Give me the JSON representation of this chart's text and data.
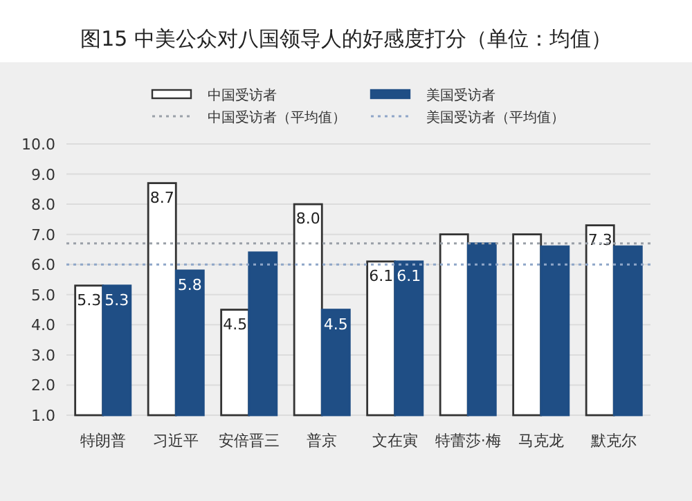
{
  "chart_data": {
    "type": "bar",
    "title": "图15  中美公众对八国领导人的好感度打分（单位：均值）",
    "categories": [
      "特朗普",
      "习近平",
      "安倍晋三",
      "普京",
      "文在寅",
      "特蕾莎·梅",
      "马克龙",
      "默克尔"
    ],
    "series": [
      {
        "name": "中国受访者",
        "color": "#ffffff",
        "values": [
          5.3,
          8.7,
          4.5,
          8.0,
          6.1,
          7.0,
          7.0,
          7.3
        ],
        "value_labels": [
          "5.3",
          "8.7",
          "4.5",
          "8.0",
          "6.1",
          null,
          null,
          "7.3"
        ]
      },
      {
        "name": "美国受访者",
        "color": "#1f4e85",
        "values": [
          5.3,
          5.8,
          6.4,
          4.5,
          6.1,
          6.7,
          6.6,
          6.6
        ],
        "value_labels": [
          "5.3",
          "5.8",
          null,
          "4.5",
          "6.1",
          null,
          null,
          null
        ]
      }
    ],
    "ref_lines": [
      {
        "axis": "y",
        "value": 6.7,
        "label": "中国受访者（平均值）",
        "color": "#9aa0a8",
        "line_style": "dotted"
      },
      {
        "axis": "y",
        "value": 6.0,
        "label": "美国受访者（平均值）",
        "color": "#8fa6c8",
        "line_style": "dotted"
      }
    ],
    "ylim": [
      1,
      10
    ],
    "yticks": [
      {
        "value": 1,
        "label": "1.0"
      },
      {
        "value": 2,
        "label": "2.0"
      },
      {
        "value": 3,
        "label": "3.0"
      },
      {
        "value": 4,
        "label": "4.0"
      },
      {
        "value": 5,
        "label": "5.0"
      },
      {
        "value": 6,
        "label": "6.0"
      },
      {
        "value": 7,
        "label": "7.0"
      },
      {
        "value": 8,
        "label": "8.0"
      },
      {
        "value": 9,
        "label": "9.0"
      },
      {
        "value": 10,
        "label": "10.0"
      }
    ],
    "grid": "y",
    "legend": "top"
  }
}
